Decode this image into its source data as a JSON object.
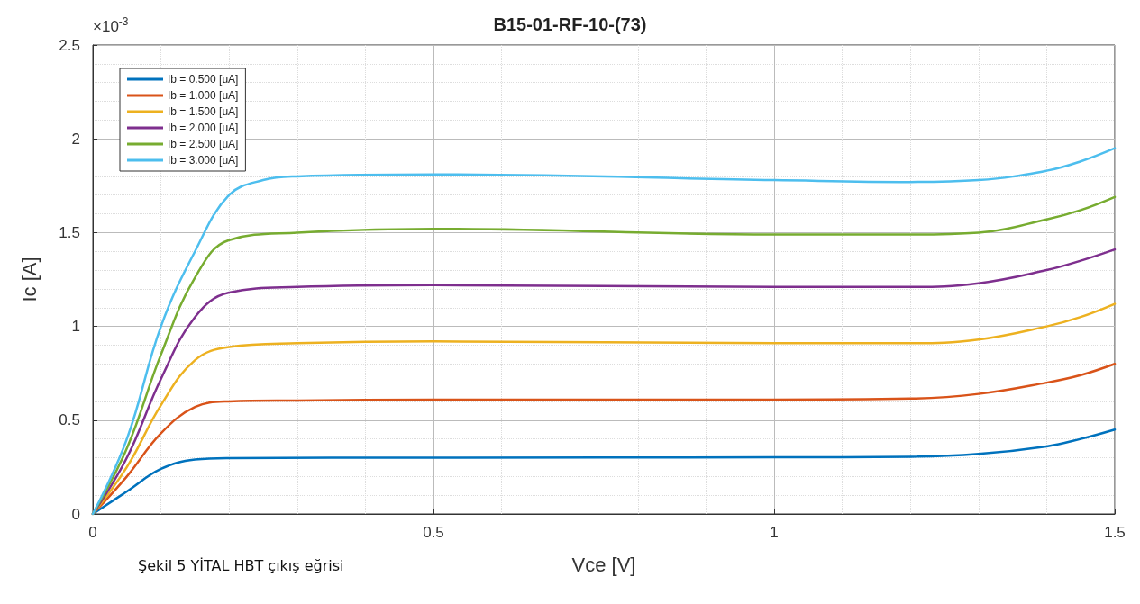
{
  "chart_data": {
    "type": "line",
    "title": "B15-01-RF-10-(73)",
    "xlabel": "Vce [V]",
    "ylabel": "Ic [A]",
    "annotations": [
      "×10$^{-3}$",
      "Şekil 5 YİTAL HBT çıkış eğrisi"
    ],
    "xlim": [
      0,
      1.5
    ],
    "xticks": [
      0,
      0.5,
      1,
      1.5
    ],
    "ylim": [
      0,
      2.5
    ],
    "yticks": [
      0,
      0.5,
      1,
      1.5,
      2,
      2.5
    ],
    "grid": true,
    "legend": "top left",
    "marker": "none",
    "line_style": "solid",
    "series": [
      {
        "name": "Ib = 0.500 [uA]",
        "color": "#0072bd",
        "x": [
          0,
          0.05,
          0.1,
          0.15,
          0.2,
          0.5,
          1.0,
          1.2,
          1.3,
          1.4,
          1.45,
          1.5
        ],
        "values": [
          0,
          0.12,
          0.24,
          0.29,
          0.298,
          0.3,
          0.302,
          0.305,
          0.32,
          0.36,
          0.4,
          0.45
        ]
      },
      {
        "name": "Ib = 1.000 [uA]",
        "color": "#d95319",
        "x": [
          0,
          0.05,
          0.1,
          0.15,
          0.2,
          0.3,
          0.5,
          1.0,
          1.2,
          1.3,
          1.4,
          1.45,
          1.5
        ],
        "values": [
          0,
          0.2,
          0.43,
          0.57,
          0.6,
          0.605,
          0.61,
          0.61,
          0.615,
          0.64,
          0.7,
          0.74,
          0.8
        ]
      },
      {
        "name": "Ib = 1.500 [uA]",
        "color": "#edb120",
        "x": [
          0,
          0.05,
          0.1,
          0.15,
          0.2,
          0.3,
          0.5,
          1.0,
          1.2,
          1.3,
          1.4,
          1.45,
          1.5
        ],
        "values": [
          0,
          0.25,
          0.58,
          0.82,
          0.89,
          0.91,
          0.92,
          0.91,
          0.91,
          0.93,
          1.0,
          1.05,
          1.12
        ]
      },
      {
        "name": "Ib = 2.000 [uA]",
        "color": "#7e2f8e",
        "x": [
          0,
          0.05,
          0.1,
          0.15,
          0.2,
          0.3,
          0.5,
          1.0,
          1.2,
          1.3,
          1.4,
          1.45,
          1.5
        ],
        "values": [
          0,
          0.3,
          0.72,
          1.05,
          1.18,
          1.21,
          1.22,
          1.21,
          1.21,
          1.23,
          1.3,
          1.35,
          1.41
        ]
      },
      {
        "name": "Ib = 2.500 [uA]",
        "color": "#77ac30",
        "x": [
          0,
          0.05,
          0.1,
          0.15,
          0.2,
          0.3,
          0.5,
          1.0,
          1.2,
          1.3,
          1.4,
          1.45,
          1.5
        ],
        "values": [
          0,
          0.35,
          0.85,
          1.26,
          1.46,
          1.5,
          1.52,
          1.49,
          1.49,
          1.5,
          1.57,
          1.62,
          1.69
        ]
      },
      {
        "name": "Ib = 3.000 [uA]",
        "color": "#4dbeee",
        "x": [
          0,
          0.05,
          0.1,
          0.15,
          0.2,
          0.25,
          0.3,
          0.5,
          1.0,
          1.2,
          1.3,
          1.4,
          1.45,
          1.5
        ],
        "values": [
          0,
          0.4,
          1.0,
          1.4,
          1.7,
          1.78,
          1.8,
          1.81,
          1.78,
          1.77,
          1.78,
          1.83,
          1.88,
          1.95
        ]
      }
    ]
  }
}
